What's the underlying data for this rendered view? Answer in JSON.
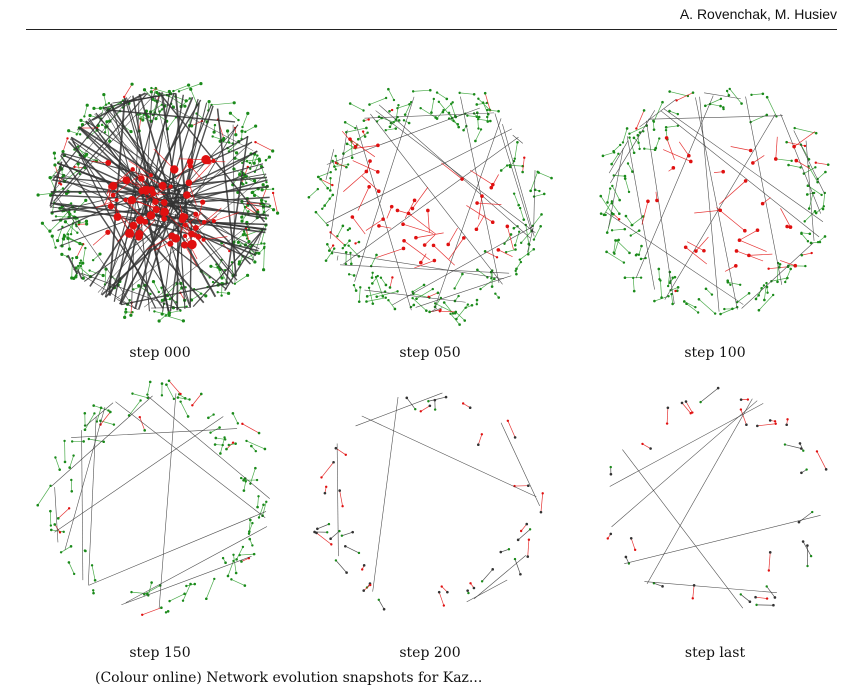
{
  "header": {
    "authors": "A. Rovenchak, M. Husiev"
  },
  "colors": {
    "node_green": "#1a8a1a",
    "node_red": "#e01010",
    "edge_dark": "#333333",
    "edge_red": "#e01010",
    "edge_green": "#2c9c2c"
  },
  "panels": [
    {
      "caption": "step 000",
      "density": 1.0
    },
    {
      "caption": "step 050",
      "density": 0.6
    },
    {
      "caption": "step 100",
      "density": 0.45
    },
    {
      "caption": "step 150",
      "density": 0.3
    },
    {
      "caption": "step 200",
      "density": 0.12
    },
    {
      "caption": "step last",
      "density": 0.09
    }
  ],
  "figure_text_partial": "(Colour online) Network evolution snapshots for Kaz..."
}
